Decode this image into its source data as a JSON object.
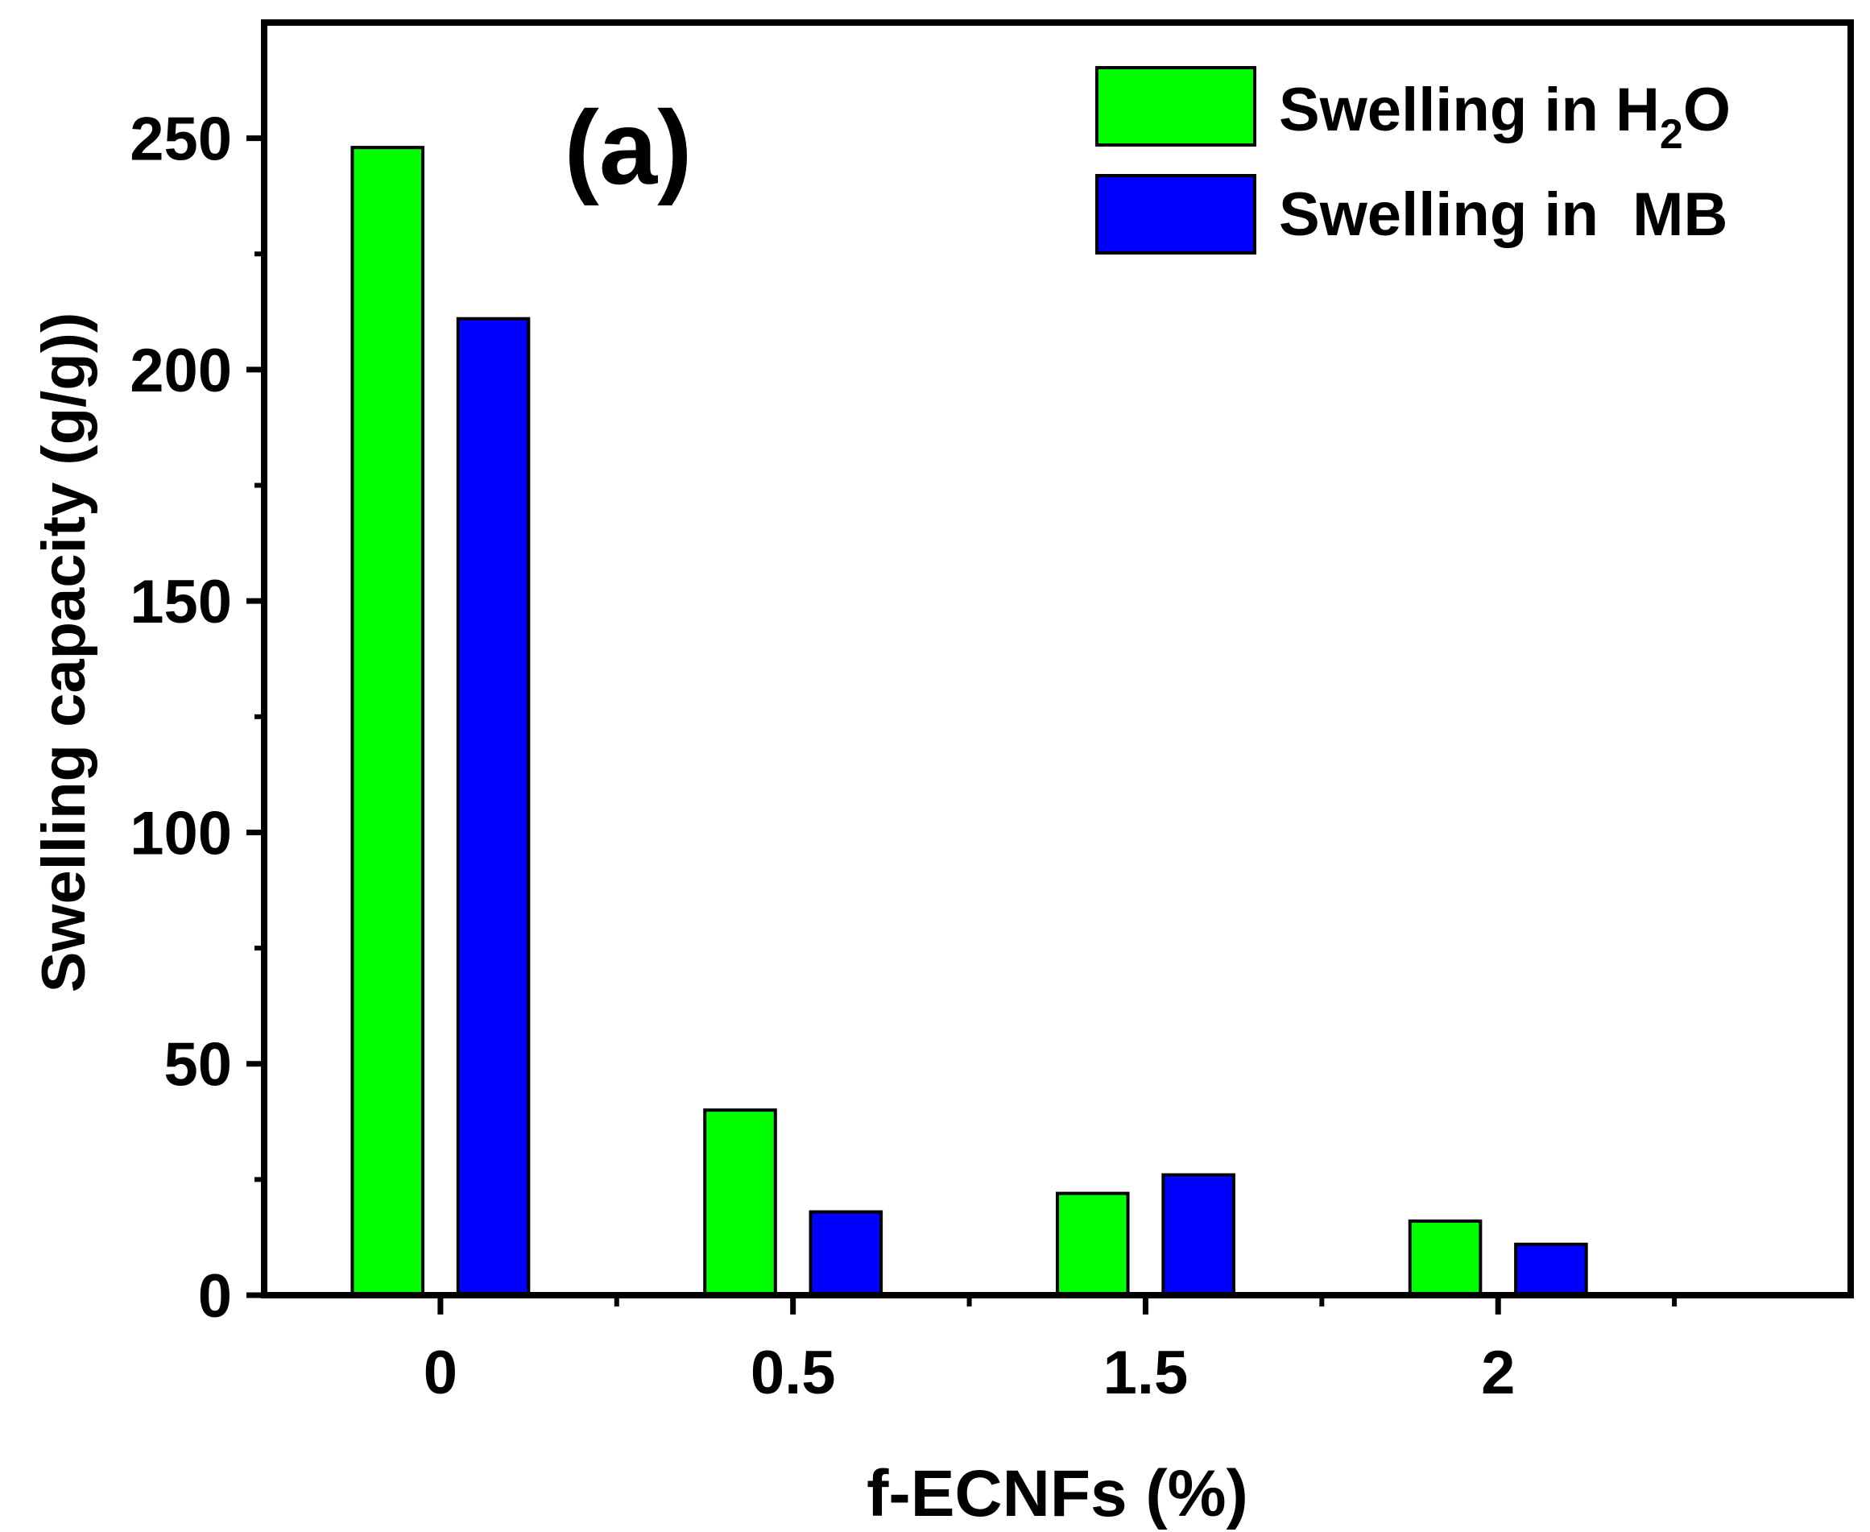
{
  "chart_data": {
    "type": "bar",
    "annotation": "(a)",
    "xlabel": "f-ECNFs (%)",
    "ylabel": "Swelling capacity (g/g))",
    "categories": [
      "0",
      "0.5",
      "1.5",
      "2"
    ],
    "ylim": [
      0,
      275
    ],
    "yticks": [
      "0",
      "50",
      "100",
      "150",
      "200",
      "250"
    ],
    "yticks_values": [
      0,
      50,
      100,
      150,
      200,
      250
    ],
    "grid": false,
    "legend_position": "top-right",
    "series": [
      {
        "name_base": "Swelling in H",
        "name_sub": "2",
        "name_tail": "O",
        "color": "#00ff00",
        "values": [
          248,
          40,
          22,
          16
        ]
      },
      {
        "name_base": "Swelling in  MB",
        "name_sub": "",
        "name_tail": "",
        "color": "#0000ff",
        "values": [
          211,
          18,
          26,
          11
        ]
      }
    ]
  }
}
